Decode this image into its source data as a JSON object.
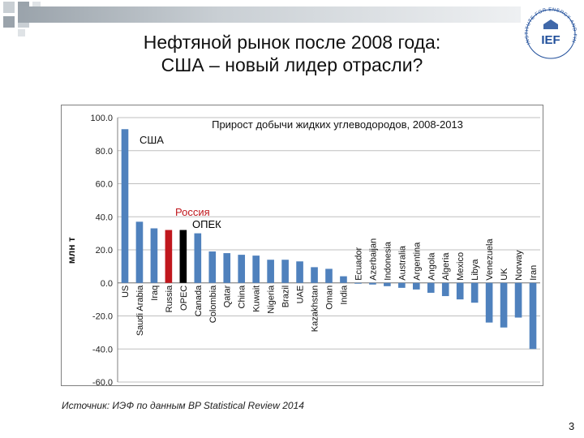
{
  "slide": {
    "title_line1": "Нефтяной рынок после 2008 года:",
    "title_line2": "США – новый лидер отрасли?",
    "source": "Источник: ИЭФ по данным BP Statistical  Review 2014",
    "page_number": "3",
    "logo_text": "IEF",
    "logo_ring_text": "INSTITUTE FOR ENERGY AND FINANCE"
  },
  "colors": {
    "bar_default": "#4f81bd",
    "bar_russia": "#c0171d",
    "bar_opec": "#000000",
    "logo_blue": "#1f4e9a"
  },
  "chart_data": {
    "type": "bar",
    "title": "Прирост добычи  жидких углеводородов, 2008-2013",
    "ylabel": "млн т",
    "xlabel": "",
    "ylim": [
      -60,
      100
    ],
    "yticks": [
      -60,
      -40,
      -20,
      0,
      20,
      40,
      60,
      80,
      100
    ],
    "ytick_labels": [
      "-60.0",
      "-40.0",
      "-20.0",
      "0.0",
      "20.0",
      "40.0",
      "60.0",
      "80.0",
      "100.0"
    ],
    "grid": true,
    "categories": [
      "US",
      "Saudi Arabia",
      "Iraq",
      "Russia",
      "OPEC",
      "Canada",
      "Colombia",
      "Qatar",
      "China",
      "Kuwait",
      "Nigeria",
      "Brazil",
      "UAE",
      "Kazakhstan",
      "Oman",
      "India",
      "Ecuador",
      "Azerbaijan",
      "Indonesia",
      "Australia",
      "Argentina",
      "Angola",
      "Algeria",
      "Mexico",
      "Libya",
      "Venezuela",
      "UK",
      "Norway",
      "Iran"
    ],
    "values": [
      93,
      37,
      33,
      32,
      32,
      30,
      19,
      18,
      17,
      16.5,
      14,
      14,
      13,
      9.5,
      8.5,
      4,
      -0.5,
      -1,
      -2,
      -3,
      -4,
      -6,
      -8,
      -10,
      -12,
      -24,
      -27,
      -21,
      -40
    ],
    "bar_colors": [
      "default",
      "default",
      "default",
      "russia",
      "opec",
      "default",
      "default",
      "default",
      "default",
      "default",
      "default",
      "default",
      "default",
      "default",
      "default",
      "default",
      "default",
      "default",
      "default",
      "default",
      "default",
      "default",
      "default",
      "default",
      "default",
      "default",
      "default",
      "default",
      "default"
    ],
    "annotations": [
      {
        "text": "США",
        "near": "US"
      },
      {
        "text": "Россия",
        "near": "Russia",
        "color": "#c0171d"
      },
      {
        "text": "ОПЕК",
        "near": "OPEC",
        "color": "#000000"
      }
    ]
  }
}
